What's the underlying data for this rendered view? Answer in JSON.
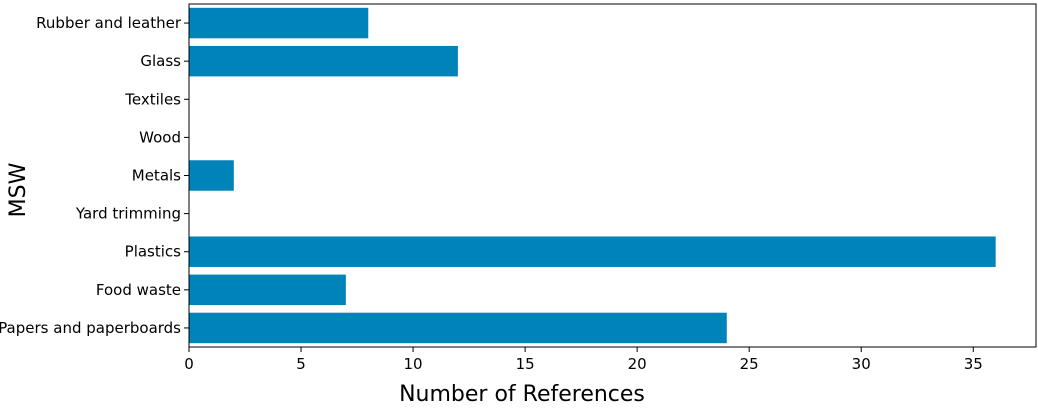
{
  "chart_data": {
    "type": "bar",
    "orientation": "horizontal",
    "xlabel": "Number of References",
    "ylabel": "MSW",
    "categories": [
      "Papers and paperboards",
      "Food waste",
      "Plastics",
      "Yard trimming",
      "Metals",
      "Wood",
      "Textiles",
      "Glass",
      "Rubber and leather"
    ],
    "values": [
      24,
      7,
      36,
      0,
      2,
      0,
      0,
      12,
      8
    ],
    "xlim": [
      0,
      37.8
    ],
    "xticks": [
      0,
      5,
      10,
      15,
      20,
      25,
      30,
      35
    ],
    "bar_color": "#0083b8",
    "grid": false,
    "legend": "none"
  }
}
